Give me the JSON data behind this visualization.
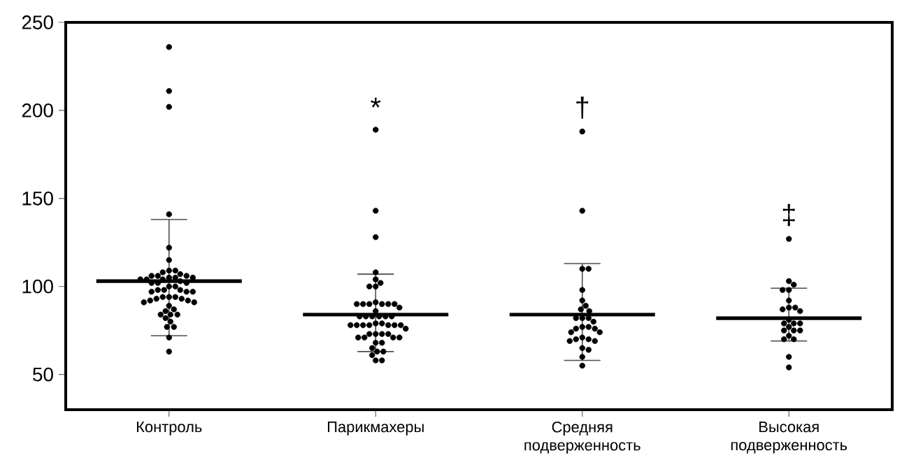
{
  "chart_data": {
    "type": "box",
    "categories": [
      "Контроль",
      "Парикмахеры",
      "Средняя подверженность",
      "Высокая подверженность"
    ],
    "boxes": [
      {
        "low": 72,
        "q1": 103,
        "median": 103,
        "q3": 103,
        "high": 138
      },
      {
        "low": 63,
        "q1": 84,
        "median": 84,
        "q3": 84,
        "high": 107
      },
      {
        "low": 58,
        "q1": 84,
        "median": 84,
        "q3": 84,
        "high": 113
      },
      {
        "low": 69,
        "q1": 82,
        "median": 82,
        "q3": 82,
        "high": 99
      }
    ],
    "series": [
      {
        "type": "scatter",
        "color": "#000000",
        "x": [
          "Контроль",
          "Контроль",
          "Контроль",
          "Контроль",
          "Контроль",
          "Контроль",
          "Контроль",
          "Контроль",
          "Контроль",
          "Контроль",
          "Контроль",
          "Контроль",
          "Контроль",
          "Контроль",
          "Контроль",
          "Контроль",
          "Контроль",
          "Контроль",
          "Контроль",
          "Контроль",
          "Контроль",
          "Контроль",
          "Контроль",
          "Контроль",
          "Контроль",
          "Контроль",
          "Контроль",
          "Контроль",
          "Контроль",
          "Контроль",
          "Контроль",
          "Контроль",
          "Контроль",
          "Контроль",
          "Контроль",
          "Контроль",
          "Контроль",
          "Контроль",
          "Контроль",
          "Контроль",
          "Контроль",
          "Контроль",
          "Контроль",
          "Контроль",
          "Контроль",
          "Контроль",
          "Контроль",
          "Контроль",
          "Контроль",
          "Контроль",
          "Контроль",
          "Контроль"
        ],
        "values": [
          236,
          211,
          202,
          141,
          122,
          115,
          109,
          108,
          109,
          107,
          106,
          106,
          106,
          105,
          105,
          105,
          104,
          104,
          104,
          103,
          102,
          102,
          102,
          100,
          100,
          98,
          98,
          98,
          97,
          97,
          97,
          94,
          94,
          94,
          93,
          93,
          92,
          92,
          91,
          91,
          89,
          87,
          86,
          84,
          84,
          84,
          82,
          80,
          77,
          77,
          71,
          63
        ]
      },
      {
        "type": "scatter",
        "color": "#000000",
        "x": [
          "Парикмахеры",
          "Парикмахеры",
          "Парикмахеры",
          "Парикмахеры",
          "Парикмахеры",
          "Парикмахеры",
          "Парикмахеры",
          "Парикмахеры",
          "Парикмахеры",
          "Парикмахеры",
          "Парикмахеры",
          "Парикмахеры",
          "Парикмахеры",
          "Парикмахеры",
          "Парикмахеры",
          "Парикмахеры",
          "Парикмахеры",
          "Парикмахеры",
          "Парикмахеры",
          "Парикмахеры",
          "Парикмахеры",
          "Парикмахеры",
          "Парикмахеры",
          "Парикмахеры",
          "Парикмахеры",
          "Парикмахеры",
          "Парикмахеры",
          "Парикмахеры",
          "Парикмахеры",
          "Парикмахеры",
          "Парикмахеры",
          "Парикмахеры",
          "Парикмахеры",
          "Парикмахеры",
          "Парикмахеры",
          "Парикмахеры",
          "Парикмахеры",
          "Парикмахеры",
          "Парикмахеры",
          "Парикмахеры",
          "Парикмахеры",
          "Парикмахеры",
          "Парикмахеры",
          "Парикмахеры",
          "Парикмахеры",
          "Парикмахеры",
          "Парикмахеры",
          "Парикмахеры",
          "Парикмахеры"
        ],
        "values": [
          189,
          143,
          128,
          108,
          104,
          102,
          100,
          100,
          91,
          90,
          90,
          90,
          90,
          90,
          90,
          88,
          86,
          83,
          83,
          83,
          83,
          83,
          83,
          79,
          79,
          78,
          78,
          78,
          78,
          78,
          78,
          78,
          76,
          73,
          73,
          73,
          73,
          71,
          71,
          71,
          71,
          68,
          68,
          65,
          63,
          63,
          61,
          58,
          58
        ]
      },
      {
        "type": "scatter",
        "color": "#000000",
        "x": [
          "Средняя подверженность",
          "Средняя подверженность",
          "Средняя подверженность",
          "Средняя подверженность",
          "Средняя подверженность",
          "Средняя подверженность",
          "Средняя подверженность",
          "Средняя подверженность",
          "Средняя подверженность",
          "Средняя подверженность",
          "Средняя подверженность",
          "Средняя подверженность",
          "Средняя подверженность",
          "Средняя подверженность",
          "Средняя подверженность",
          "Средняя подверженность",
          "Средняя подверженность",
          "Средняя подверженность",
          "Средняя подверженность",
          "Средняя подверженность",
          "Средняя подверженность",
          "Средняя подверженность",
          "Средняя подверженность",
          "Средняя подверженность",
          "Средняя подверженность",
          "Средняя подверженность",
          "Средняя подверженность",
          "Средняя подверженность"
        ],
        "values": [
          188,
          143,
          110,
          110,
          98,
          92,
          89,
          87,
          86,
          82,
          82,
          82,
          80,
          77,
          77,
          76,
          76,
          74,
          74,
          71,
          70,
          70,
          69,
          69,
          65,
          64,
          60,
          55
        ]
      },
      {
        "type": "scatter",
        "color": "#000000",
        "x": [
          "Высокая подверженность",
          "Высокая подверженность",
          "Высокая подверженность",
          "Высокая подверженность",
          "Высокая подверженность",
          "Высокая подверженность",
          "Высокая подверженность",
          "Высокая подверженность",
          "Высокая подверженность",
          "Высокая подверженность",
          "Высокая подверженность",
          "Высокая подверженность",
          "Высокая подверженность",
          "Высокая подверженность",
          "Высокая подверженность",
          "Высокая подверженность",
          "Высокая подверженность",
          "Высокая подверженность",
          "Высокая подверженность",
          "Высокая подверженность",
          "Высокая подверженность",
          "Высокая подверженность",
          "Высокая подверженность"
        ],
        "values": [
          127,
          103,
          101,
          98,
          98,
          92,
          88,
          88,
          87,
          86,
          81,
          79,
          79,
          79,
          77,
          75,
          75,
          75,
          72,
          70,
          70,
          60,
          54
        ]
      }
    ],
    "ylim": [
      30,
      250
    ],
    "yticks": [
      50,
      100,
      150,
      200,
      250
    ],
    "marker": "circle",
    "annotations": [
      "*",
      "†",
      "‡"
    ]
  }
}
